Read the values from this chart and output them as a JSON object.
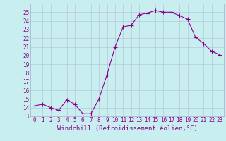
{
  "x": [
    0,
    1,
    2,
    3,
    4,
    5,
    6,
    7,
    8,
    9,
    10,
    11,
    12,
    13,
    14,
    15,
    16,
    17,
    18,
    19,
    20,
    21,
    22,
    23
  ],
  "y": [
    14.2,
    14.4,
    14.0,
    13.7,
    14.9,
    14.4,
    13.3,
    13.3,
    15.0,
    17.8,
    21.0,
    23.3,
    23.5,
    24.7,
    24.9,
    25.2,
    25.0,
    25.0,
    24.6,
    24.2,
    22.1,
    21.4,
    20.5,
    20.1
  ],
  "line_color": "#8B008B",
  "marker": "+",
  "markersize": 4,
  "linewidth": 0.8,
  "bg_color": "#c8eef0",
  "grid_color": "#aaaacc",
  "xlabel": "Windchill (Refroidissement éolien,°C)",
  "xlabel_color": "#8B008B",
  "xlabel_fontsize": 6.5,
  "tick_color": "#8B008B",
  "tick_fontsize": 5.5,
  "ylim": [
    13,
    26
  ],
  "xlim": [
    -0.5,
    23.5
  ],
  "yticks": [
    13,
    14,
    15,
    16,
    17,
    18,
    19,
    20,
    21,
    22,
    23,
    24,
    25
  ],
  "xticks": [
    0,
    1,
    2,
    3,
    4,
    5,
    6,
    7,
    8,
    9,
    10,
    11,
    12,
    13,
    14,
    15,
    16,
    17,
    18,
    19,
    20,
    21,
    22,
    23
  ]
}
